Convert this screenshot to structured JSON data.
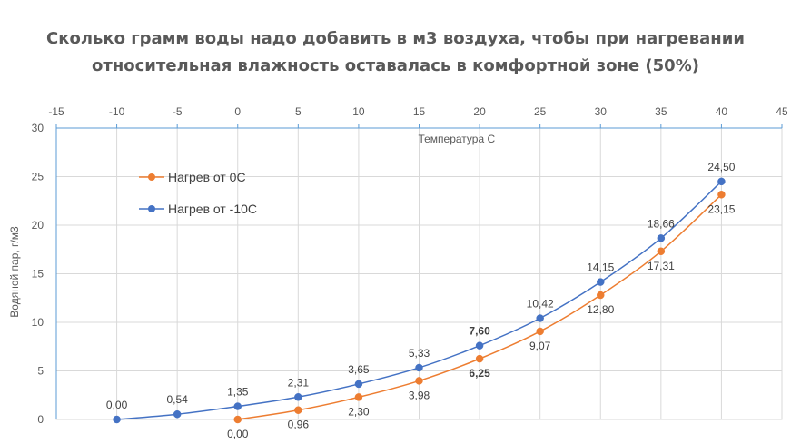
{
  "chart_data": {
    "type": "scatter",
    "title_lines": [
      "Сколько грамм воды надо добавить в м3 воздуха, чтобы при нагревании",
      "относительная влажность оставалась в комфортной зоне (50%)"
    ],
    "xlabel": "Температура С",
    "ylabel": "Водяной пар, г/м3",
    "xlim": [
      -15,
      45
    ],
    "ylim": [
      0,
      30
    ],
    "x_ticks": [
      "-15",
      "-10",
      "-5",
      "0",
      "5",
      "10",
      "15",
      "20",
      "25",
      "30",
      "35",
      "40",
      "45"
    ],
    "y_ticks": [
      "0",
      "5",
      "10",
      "15",
      "20",
      "25",
      "30"
    ],
    "x_axis_position": "top",
    "grid": true,
    "smooth_lines": true,
    "legend_position": "top-left",
    "series": [
      {
        "name": "Нагрев от 0С",
        "color": "#ED7D31",
        "label_position": "below",
        "points": [
          {
            "x": 0,
            "y": 0,
            "label": "0,00"
          },
          {
            "x": 5,
            "y": 0.96,
            "label": "0,96"
          },
          {
            "x": 10,
            "y": 2.3,
            "label": "2,30"
          },
          {
            "x": 15,
            "y": 3.98,
            "label": "3,98"
          },
          {
            "x": 20,
            "y": 6.25,
            "label": "6,25",
            "bold": true
          },
          {
            "x": 25,
            "y": 9.07,
            "label": "9,07"
          },
          {
            "x": 30,
            "y": 12.8,
            "label": "12,80"
          },
          {
            "x": 35,
            "y": 17.31,
            "label": "17,31"
          },
          {
            "x": 40,
            "y": 23.15,
            "label": "23,15"
          }
        ]
      },
      {
        "name": "Нагрев от -10С",
        "color": "#4472C4",
        "label_position": "above",
        "points": [
          {
            "x": -10,
            "y": 0,
            "label": "0,00"
          },
          {
            "x": -5,
            "y": 0.54,
            "label": "0,54"
          },
          {
            "x": 0,
            "y": 1.35,
            "label": "1,35"
          },
          {
            "x": 5,
            "y": 2.31,
            "label": "2,31"
          },
          {
            "x": 10,
            "y": 3.65,
            "label": "3,65"
          },
          {
            "x": 15,
            "y": 5.33,
            "label": "5,33"
          },
          {
            "x": 20,
            "y": 7.6,
            "label": "7,60",
            "bold": true
          },
          {
            "x": 25,
            "y": 10.42,
            "label": "10,42"
          },
          {
            "x": 30,
            "y": 14.15,
            "label": "14,15"
          },
          {
            "x": 35,
            "y": 18.66,
            "label": "18,66"
          },
          {
            "x": 40,
            "y": 24.5,
            "label": "24,50"
          }
        ]
      }
    ]
  }
}
